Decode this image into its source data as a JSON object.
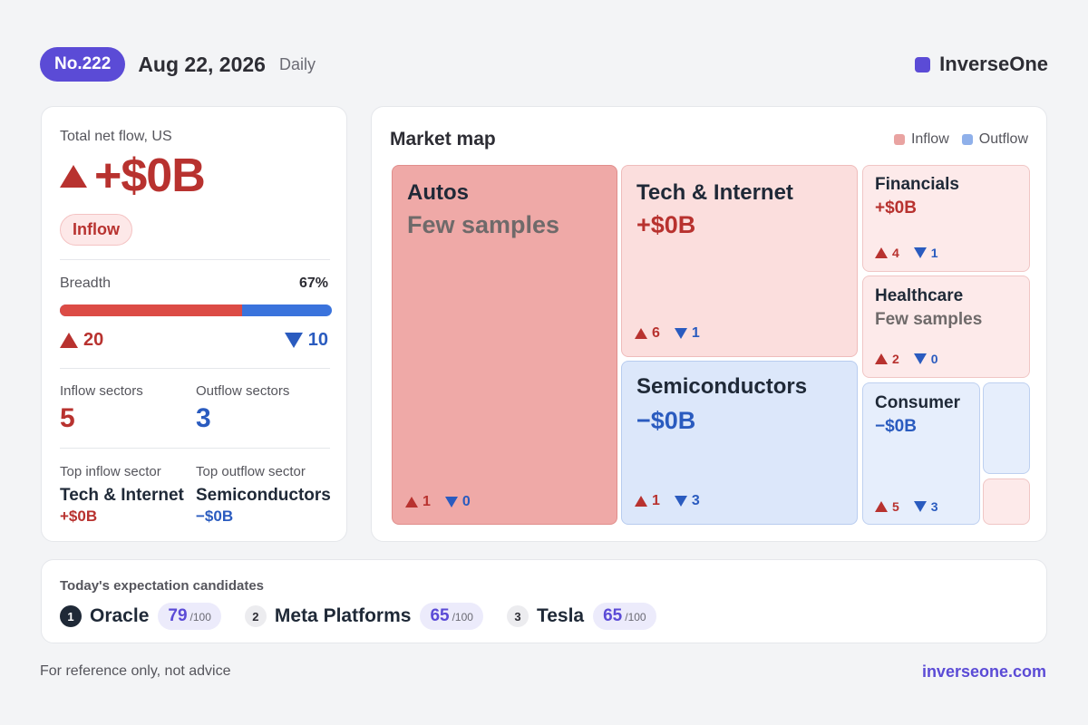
{
  "header": {
    "issue": "No.222",
    "date": "Aug 22, 2026",
    "cadence": "Daily",
    "brand": "InverseOne"
  },
  "summary": {
    "label": "Total net flow, US",
    "value": "+$0B",
    "direction_badge": "Inflow",
    "breadth_label": "Breadth",
    "breadth_pct": "67%",
    "breadth_fraction": 0.67,
    "up_count": "20",
    "down_count": "10",
    "inflow_sectors_label": "Inflow sectors",
    "inflow_sectors": "5",
    "outflow_sectors_label": "Outflow sectors",
    "outflow_sectors": "3",
    "top_inflow_label": "Top inflow sector",
    "top_inflow_name": "Tech & Internet",
    "top_inflow_value": "+$0B",
    "top_outflow_label": "Top outflow sector",
    "top_outflow_name": "Semiconductors",
    "top_outflow_value": "−$0B"
  },
  "market_map": {
    "title": "Market map",
    "legend": {
      "inflow": "Inflow",
      "outflow": "Outflow"
    },
    "tiles": {
      "autos": {
        "name": "Autos",
        "value": "Few samples",
        "up": "1",
        "down": "0"
      },
      "tech": {
        "name": "Tech & Internet",
        "value": "+$0B",
        "up": "6",
        "down": "1"
      },
      "semis": {
        "name": "Semiconductors",
        "value": "−$0B",
        "up": "1",
        "down": "3"
      },
      "financials": {
        "name": "Financials",
        "value": "+$0B",
        "up": "4",
        "down": "1"
      },
      "healthcare": {
        "name": "Healthcare",
        "value": "Few samples",
        "up": "2",
        "down": "0"
      },
      "consumer": {
        "name": "Consumer",
        "value": "−$0B",
        "up": "5",
        "down": "3"
      }
    }
  },
  "candidates": {
    "label": "Today's expectation candidates",
    "items": [
      {
        "rank": "1",
        "name": "Oracle",
        "score": "79",
        "max": "/100"
      },
      {
        "rank": "2",
        "name": "Meta Platforms",
        "score": "65",
        "max": "/100"
      },
      {
        "rank": "3",
        "name": "Tesla",
        "score": "65",
        "max": "/100"
      }
    ]
  },
  "footer": {
    "note": "For reference only, not advice",
    "url": "inverseone.com"
  },
  "colors": {
    "accent": "#5b4bd6",
    "inflow": "#b8322f",
    "outflow": "#2a5bbf"
  }
}
